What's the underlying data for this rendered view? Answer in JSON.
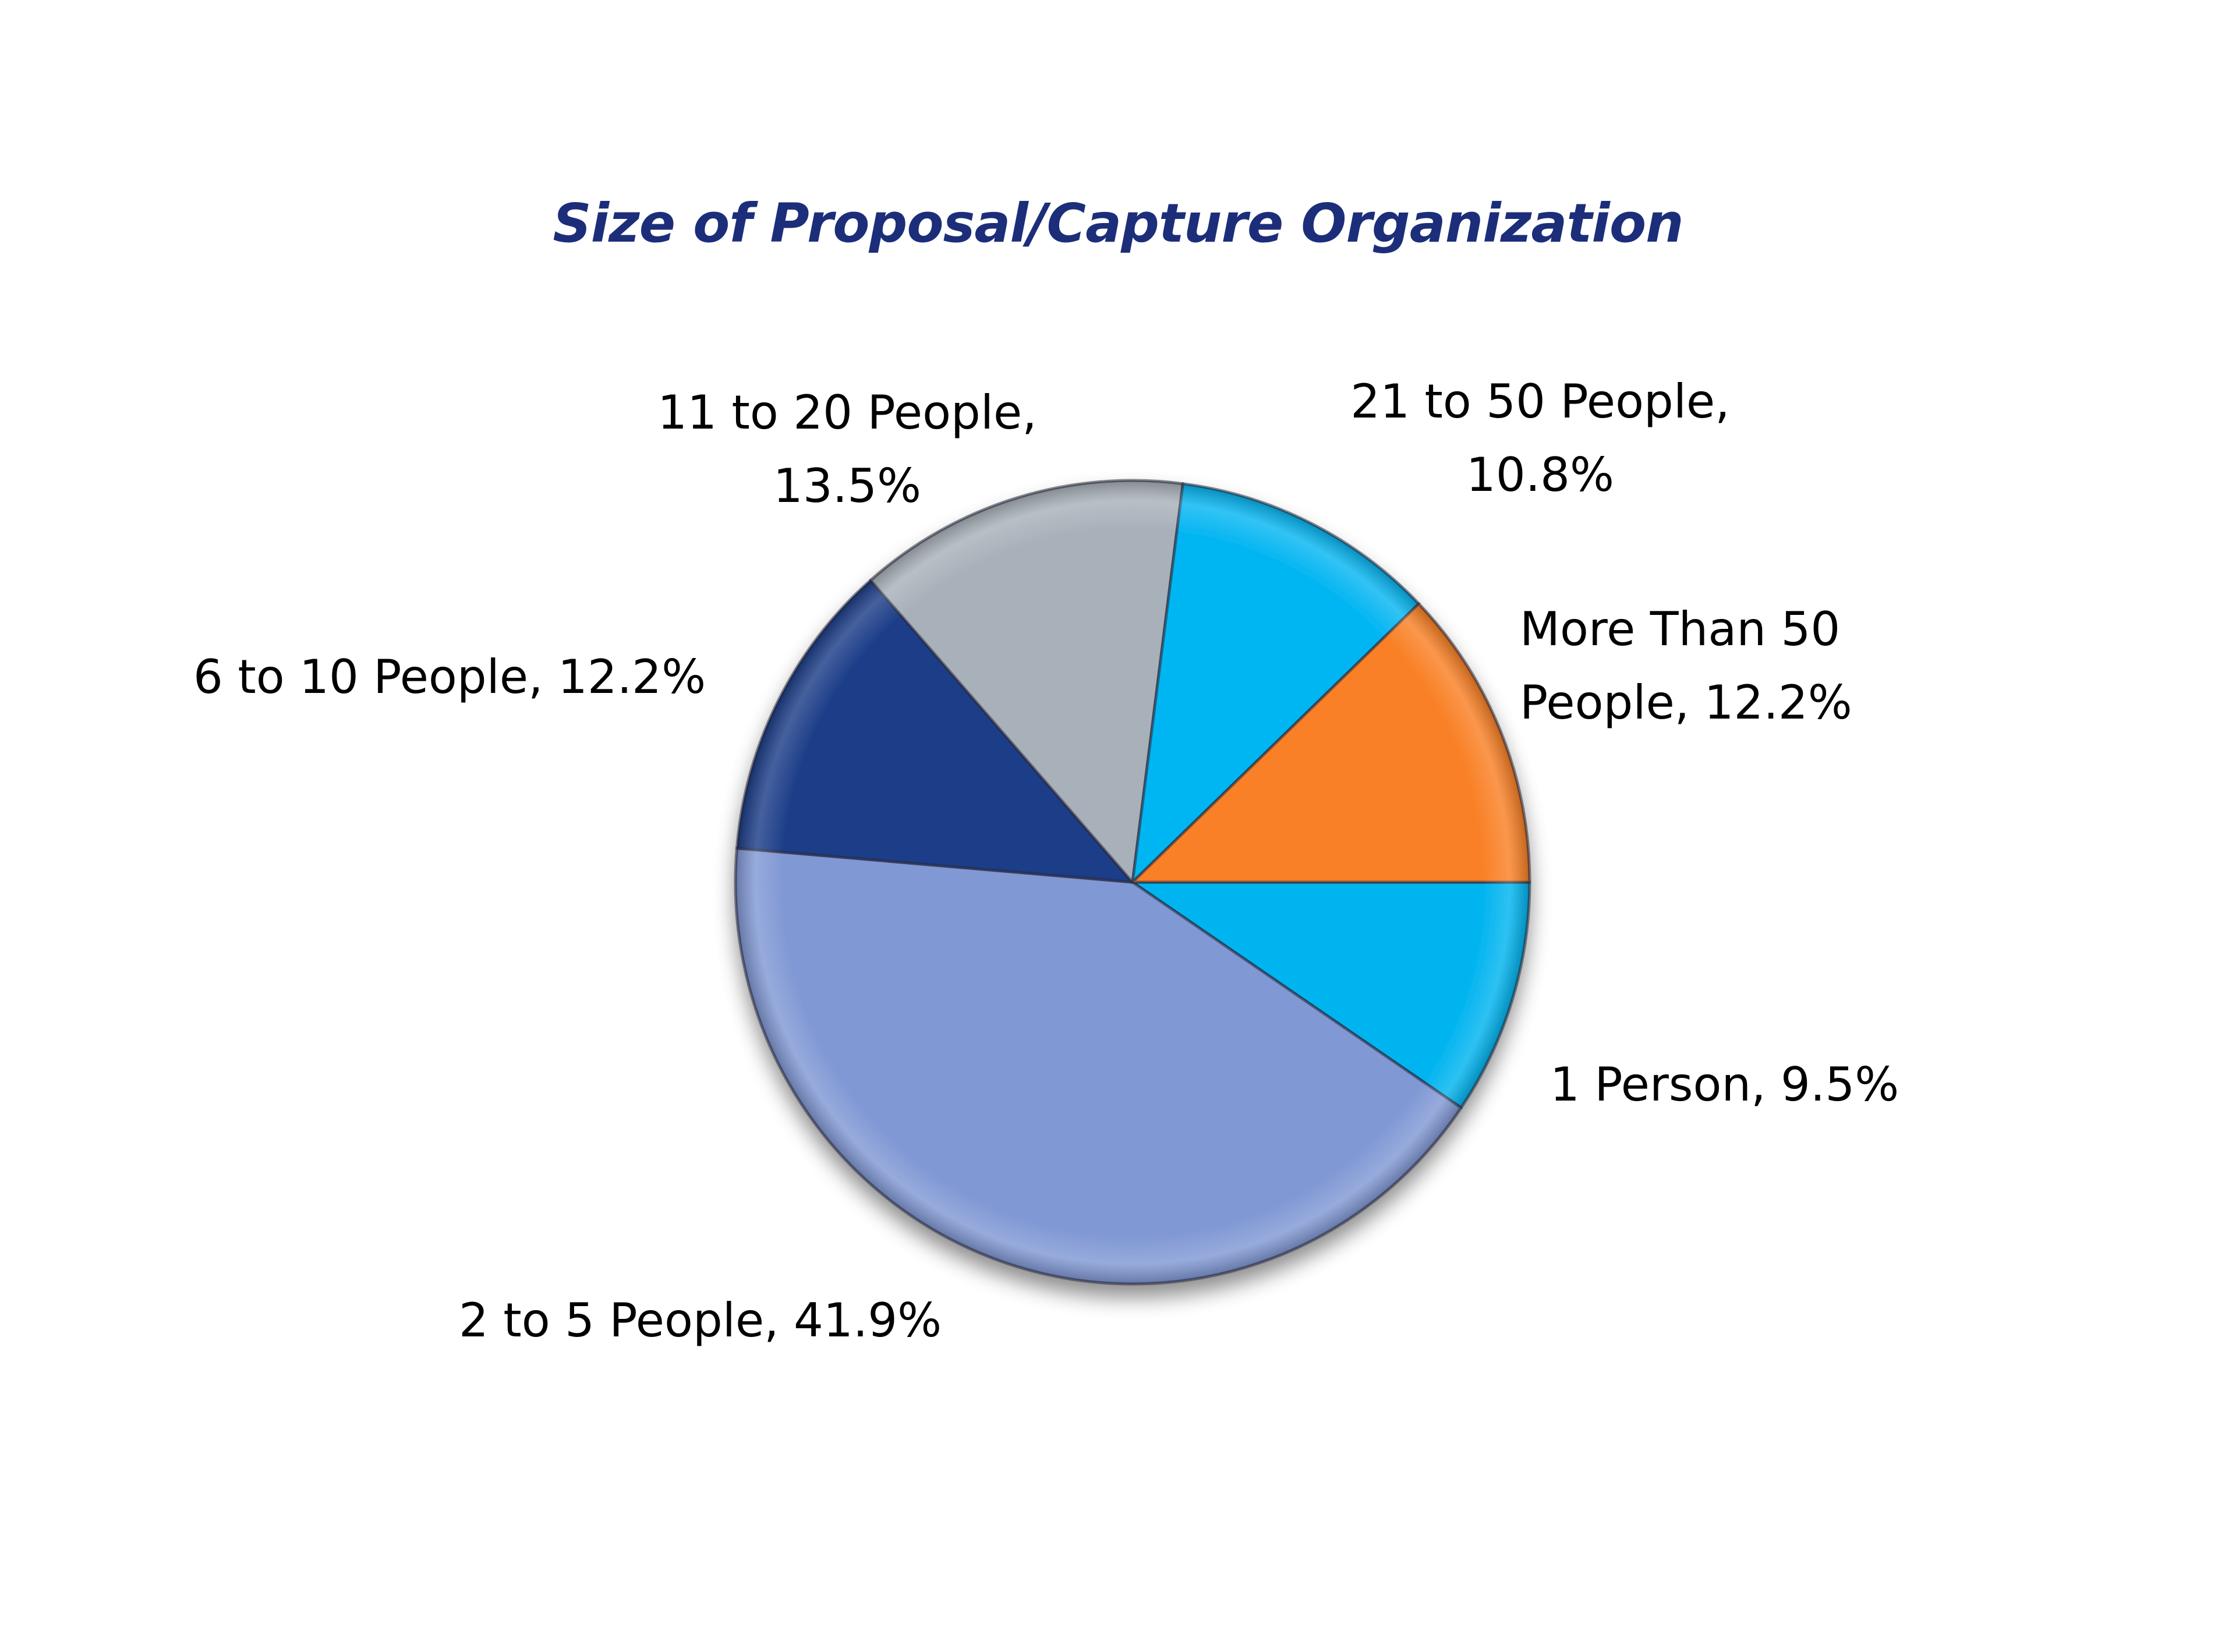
{
  "chart_data": {
    "type": "pie",
    "title": "Size of Proposal/Capture Organization",
    "start_angle_deg": 0,
    "direction": "clockwise",
    "legend": "none",
    "data_labels": "category, percent",
    "slices": [
      {
        "label": "1 Person",
        "value": 9.5,
        "display": "1 Person, 9.5%",
        "color": "#00b4f0"
      },
      {
        "label": "2 to 5 People",
        "value": 41.9,
        "display": "2 to 5 People, 41.9%",
        "color": "#8098d4"
      },
      {
        "label": "6 to 10 People",
        "value": 12.2,
        "display": "6 to 10 People, 12.2%",
        "color": "#1c3d88"
      },
      {
        "label": "11 to 20 People",
        "value": 13.5,
        "display": "11 to 20 People, 13.5%",
        "color": "#a8b1b9"
      },
      {
        "label": "21 to 50 People",
        "value": 10.8,
        "display": "21 to 50 People, 10.8%",
        "color": "#06b6f2"
      },
      {
        "label": "More Than 50 People",
        "value": 12.2,
        "display": "More Than 50 People, 12.2%",
        "color": "#f98025"
      }
    ]
  },
  "labels": {
    "one_person": {
      "line1": "1 Person, 9.5%"
    },
    "two_to_five": {
      "line1": "2 to 5 People, 41.9%"
    },
    "six_to_ten": {
      "line1": "6 to 10 People, 12.2%"
    },
    "eleven_to_twenty": {
      "line1": "11 to 20 People,",
      "line2": "13.5%"
    },
    "twentyone_to_fifty": {
      "line1": "21 to 50 People,",
      "line2": "10.8%"
    },
    "more_than_fifty": {
      "line1": "More Than 50",
      "line2": "People, 12.2%"
    }
  },
  "colors": {
    "title": "#1c2e7a",
    "label_text": "#000000",
    "background": "#ffffff"
  }
}
